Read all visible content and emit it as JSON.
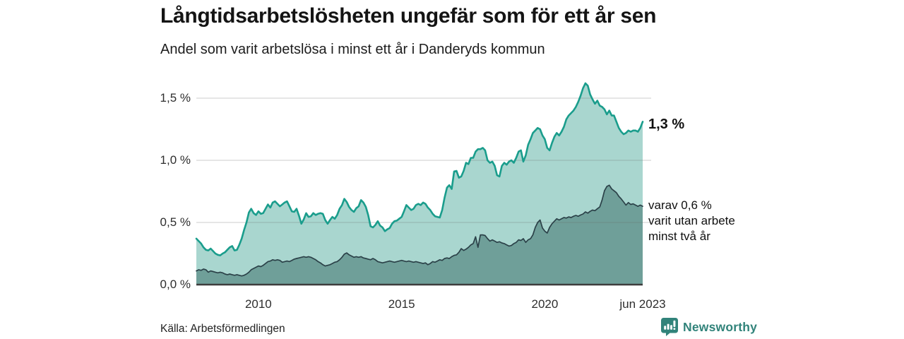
{
  "header": {
    "title": "Långtidsarbetslösheten ungefär som för ett år sen",
    "subtitle": "Andel som varit arbetslösa i minst ett år i Danderyds kommun"
  },
  "footer": {
    "source": "Källa: Arbetsförmedlingen",
    "logo_text": "Newsworthy"
  },
  "colors": {
    "teal_line": "#1a9d8c",
    "teal_fill": "#a9d6cf",
    "dark_line": "#2b4148",
    "dark_fill": "#6f9f99",
    "grid": "#6b6b6b",
    "baseline": "#3d3d3d",
    "logo_teal": "#31837a"
  },
  "chart_data": {
    "type": "area",
    "title": "Långtidsarbetslösheten ungefär som för ett år sen",
    "subtitle": "Andel som varit arbetslösa i minst ett år i Danderyds kommun",
    "unit": "%",
    "grid": "on",
    "x_axis": {
      "start": "2007-11",
      "end": "2023-06",
      "start_decimal": 2007.8333,
      "end_decimal": 2023.4167,
      "ticks": [
        {
          "label": "2010",
          "decimal": 2010.0
        },
        {
          "label": "2015",
          "decimal": 2015.0
        },
        {
          "label": "2020",
          "decimal": 2020.0
        },
        {
          "label": "jun 2023",
          "decimal": 2023.4167
        }
      ]
    },
    "y_axis": {
      "min": 0,
      "max": 1.65,
      "ticks": [
        {
          "label": "1,5 %",
          "value": 1.5
        },
        {
          "label": "1,0 %",
          "value": 1.0
        },
        {
          "label": "0,5 %",
          "value": 0.5
        },
        {
          "label": "0,0 %",
          "value": 0.0
        }
      ]
    },
    "series": [
      {
        "name": "Andel som varit arbetslösa i minst ett år",
        "color": "#1a9d8c",
        "fill": "#a9d6cf",
        "frequency": "monthly",
        "start": "2007-11",
        "end": "2023-06",
        "latest_value": 1.31,
        "values": [
          0.37,
          0.35,
          0.33,
          0.3,
          0.28,
          0.275,
          0.29,
          0.27,
          0.25,
          0.24,
          0.235,
          0.25,
          0.26,
          0.28,
          0.3,
          0.31,
          0.275,
          0.28,
          0.32,
          0.37,
          0.44,
          0.5,
          0.58,
          0.61,
          0.575,
          0.56,
          0.59,
          0.57,
          0.575,
          0.61,
          0.645,
          0.62,
          0.66,
          0.67,
          0.65,
          0.63,
          0.645,
          0.66,
          0.67,
          0.63,
          0.59,
          0.585,
          0.61,
          0.555,
          0.49,
          0.525,
          0.575,
          0.545,
          0.55,
          0.575,
          0.56,
          0.57,
          0.575,
          0.57,
          0.52,
          0.49,
          0.52,
          0.545,
          0.53,
          0.56,
          0.61,
          0.64,
          0.69,
          0.665,
          0.625,
          0.6,
          0.585,
          0.615,
          0.63,
          0.68,
          0.66,
          0.625,
          0.56,
          0.47,
          0.46,
          0.48,
          0.51,
          0.475,
          0.46,
          0.43,
          0.445,
          0.455,
          0.49,
          0.51,
          0.515,
          0.53,
          0.545,
          0.59,
          0.64,
          0.62,
          0.6,
          0.61,
          0.64,
          0.65,
          0.64,
          0.66,
          0.65,
          0.62,
          0.6,
          0.57,
          0.55,
          0.545,
          0.54,
          0.6,
          0.7,
          0.78,
          0.8,
          0.77,
          0.91,
          0.915,
          0.86,
          0.87,
          0.915,
          0.98,
          0.97,
          1.02,
          1.02,
          1.07,
          1.09,
          1.09,
          1.1,
          1.08,
          1.0,
          0.98,
          0.99,
          0.955,
          0.88,
          0.87,
          0.955,
          0.98,
          0.965,
          0.99,
          1.0,
          0.98,
          1.02,
          1.07,
          1.08,
          0.99,
          1.04,
          1.125,
          1.17,
          1.22,
          1.24,
          1.26,
          1.25,
          1.2,
          1.17,
          1.1,
          1.08,
          1.14,
          1.19,
          1.22,
          1.2,
          1.23,
          1.27,
          1.33,
          1.36,
          1.38,
          1.4,
          1.43,
          1.47,
          1.52,
          1.58,
          1.62,
          1.6,
          1.53,
          1.49,
          1.455,
          1.48,
          1.44,
          1.43,
          1.41,
          1.37,
          1.4,
          1.36,
          1.36,
          1.31,
          1.26,
          1.23,
          1.21,
          1.22,
          1.24,
          1.23,
          1.24,
          1.24,
          1.23,
          1.26,
          1.31
        ]
      },
      {
        "name": "varav utan arbete minst två år",
        "color": "#2b4148",
        "fill": "#6f9f99",
        "frequency": "monthly",
        "start": "2007-11",
        "end": "2023-06",
        "latest_value": 0.63,
        "values": [
          0.11,
          0.12,
          0.115,
          0.125,
          0.12,
          0.1,
          0.11,
          0.105,
          0.1,
          0.095,
          0.1,
          0.095,
          0.085,
          0.08,
          0.085,
          0.08,
          0.075,
          0.08,
          0.075,
          0.07,
          0.075,
          0.085,
          0.1,
          0.12,
          0.13,
          0.14,
          0.15,
          0.145,
          0.155,
          0.17,
          0.185,
          0.19,
          0.2,
          0.195,
          0.2,
          0.195,
          0.18,
          0.185,
          0.19,
          0.185,
          0.195,
          0.205,
          0.21,
          0.215,
          0.22,
          0.225,
          0.22,
          0.225,
          0.22,
          0.21,
          0.2,
          0.185,
          0.175,
          0.16,
          0.15,
          0.155,
          0.16,
          0.17,
          0.18,
          0.185,
          0.2,
          0.22,
          0.245,
          0.255,
          0.24,
          0.23,
          0.22,
          0.225,
          0.22,
          0.225,
          0.215,
          0.21,
          0.205,
          0.2,
          0.21,
          0.2,
          0.185,
          0.18,
          0.175,
          0.18,
          0.185,
          0.19,
          0.185,
          0.18,
          0.185,
          0.19,
          0.195,
          0.19,
          0.185,
          0.19,
          0.185,
          0.18,
          0.185,
          0.18,
          0.175,
          0.17,
          0.175,
          0.16,
          0.17,
          0.185,
          0.18,
          0.19,
          0.2,
          0.195,
          0.21,
          0.215,
          0.21,
          0.225,
          0.235,
          0.24,
          0.26,
          0.29,
          0.275,
          0.285,
          0.3,
          0.32,
          0.33,
          0.385,
          0.3,
          0.4,
          0.4,
          0.395,
          0.37,
          0.35,
          0.36,
          0.35,
          0.34,
          0.345,
          0.335,
          0.33,
          0.32,
          0.31,
          0.315,
          0.33,
          0.34,
          0.36,
          0.355,
          0.37,
          0.34,
          0.36,
          0.37,
          0.4,
          0.46,
          0.5,
          0.52,
          0.455,
          0.43,
          0.415,
          0.46,
          0.49,
          0.51,
          0.53,
          0.52,
          0.53,
          0.54,
          0.535,
          0.545,
          0.54,
          0.55,
          0.557,
          0.55,
          0.56,
          0.568,
          0.585,
          0.575,
          0.59,
          0.6,
          0.595,
          0.61,
          0.625,
          0.68,
          0.755,
          0.79,
          0.8,
          0.77,
          0.755,
          0.74,
          0.71,
          0.69,
          0.665,
          0.64,
          0.66,
          0.645,
          0.65,
          0.64,
          0.63,
          0.64,
          0.63
        ]
      }
    ],
    "annotations": [
      {
        "id": "latest-one-year",
        "text": "1,3 %",
        "bold": true,
        "anchor_value": 1.28
      },
      {
        "id": "two-year-note",
        "text": "varav 0,6 %\nvarit utan arbete\nminst två år",
        "bold": false,
        "anchor_value": 0.655
      }
    ],
    "legend_position": "none"
  }
}
